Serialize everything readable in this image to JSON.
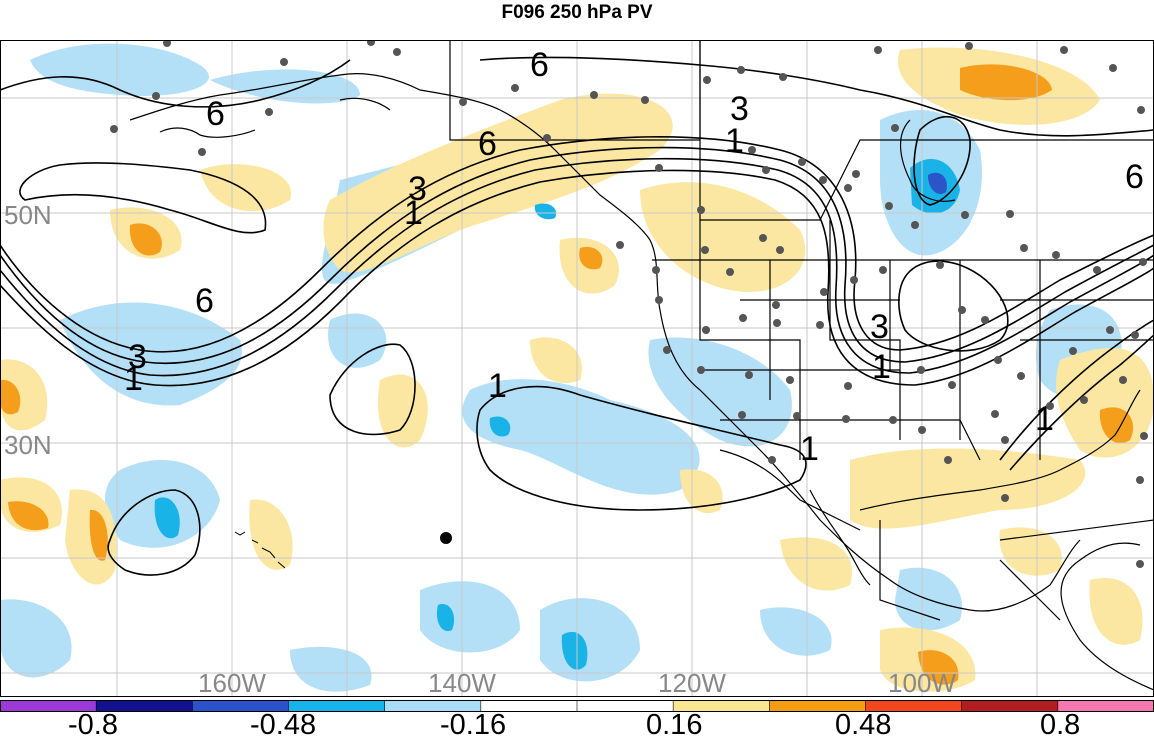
{
  "title": "F096 250 hPa PV",
  "lat_labels": [
    "50N",
    "30N"
  ],
  "lon_labels": [
    "160W",
    "140W",
    "120W",
    "100W"
  ],
  "contour_labels": [
    "6",
    "3",
    "1"
  ],
  "colorbar": {
    "labels": [
      "-0.8",
      "-0.48",
      "-0.16",
      "0.16",
      "0.48",
      "0.8"
    ],
    "colors": [
      "#9b3ad6",
      "#12128f",
      "#2c52c9",
      "#16b4ea",
      "#a8dcf7",
      "#ffffff",
      "#ffffff",
      "#f9e68e",
      "#f39d12",
      "#f2461f",
      "#b11e21",
      "#f378b0"
    ]
  },
  "colors": {
    "neg_light": "#b3e0f7",
    "neg_mid": "#19b3e8",
    "neg_dark": "#2b55c8",
    "pos_light": "#fbe7a1",
    "pos_mid": "#f59e1b",
    "grid": "#c8c8c8",
    "station": "#555555"
  }
}
